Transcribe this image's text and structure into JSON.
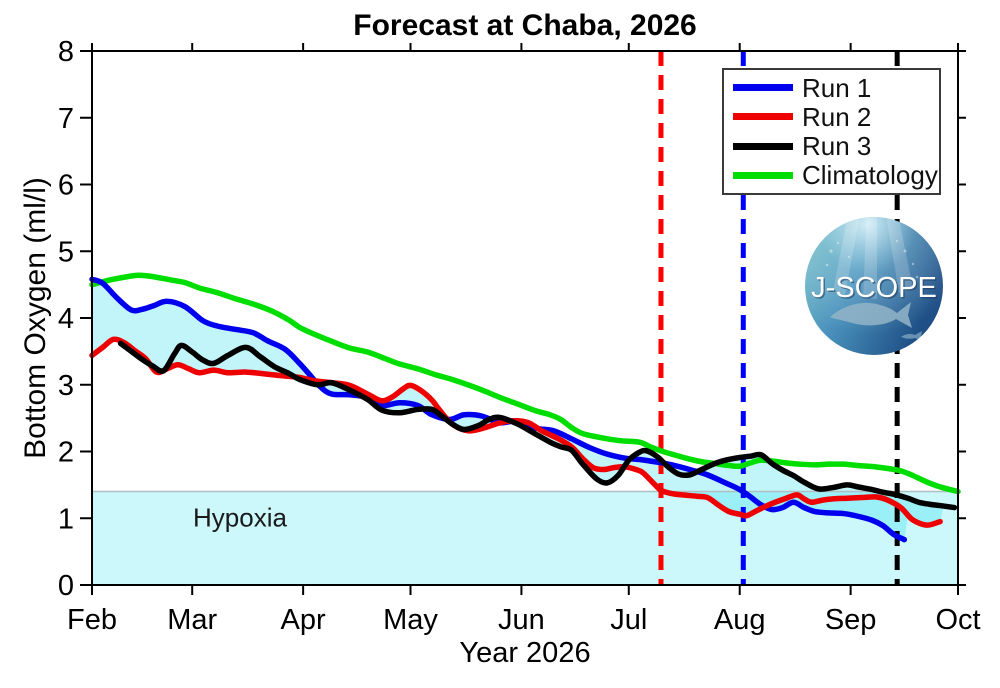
{
  "hypoxia": {
    "label": "Hypoxia",
    "threshold": 1.4,
    "fill_color": "rgba(0,213,235,0.20)"
  },
  "logo": {
    "text": "J-SCOPE"
  },
  "legend": {
    "position": "top-right"
  },
  "chart_data": {
    "type": "line",
    "title": "Forecast at Chaba, 2026",
    "xlabel": "Year 2026",
    "ylabel": "Bottom Oxygen (ml/l)",
    "ylim": [
      0,
      8
    ],
    "yticks": [
      0,
      1,
      2,
      3,
      4,
      5,
      6,
      7,
      8
    ],
    "x_unit": "days from Feb 1",
    "xlim_days": [
      0,
      242
    ],
    "xticks": [
      {
        "label": "Feb",
        "day": 0
      },
      {
        "label": "Mar",
        "day": 28
      },
      {
        "label": "Apr",
        "day": 59
      },
      {
        "label": "May",
        "day": 89
      },
      {
        "label": "Jun",
        "day": 120
      },
      {
        "label": "Jul",
        "day": 150
      },
      {
        "label": "Aug",
        "day": 181
      },
      {
        "label": "Sep",
        "day": 212
      },
      {
        "label": "Oct",
        "day": 242
      }
    ],
    "grid": false,
    "envelope": {
      "between": [
        "Run 1",
        "Run 2",
        "Run 3"
      ],
      "fill_color": "rgba(0,213,235,0.24)"
    },
    "vertical_dashed_lines": [
      {
        "color": "#ff0000",
        "day": 159
      },
      {
        "color": "#0000ff",
        "day": 182
      },
      {
        "color": "#000000",
        "day": 225
      }
    ],
    "series": [
      {
        "name": "Run 1",
        "color": "#0000ee",
        "points": [
          [
            0,
            4.58
          ],
          [
            3,
            4.52
          ],
          [
            7,
            4.3
          ],
          [
            11,
            4.12
          ],
          [
            14,
            4.13
          ],
          [
            17,
            4.18
          ],
          [
            21,
            4.25
          ],
          [
            26,
            4.17
          ],
          [
            31,
            3.96
          ],
          [
            35,
            3.88
          ],
          [
            40,
            3.83
          ],
          [
            45,
            3.78
          ],
          [
            49,
            3.66
          ],
          [
            54,
            3.53
          ],
          [
            58,
            3.32
          ],
          [
            61,
            3.14
          ],
          [
            64,
            2.96
          ],
          [
            67,
            2.86
          ],
          [
            72,
            2.85
          ],
          [
            77,
            2.81
          ],
          [
            81,
            2.69
          ],
          [
            86,
            2.73
          ],
          [
            91,
            2.69
          ],
          [
            95,
            2.55
          ],
          [
            100,
            2.48
          ],
          [
            104,
            2.55
          ],
          [
            109,
            2.53
          ],
          [
            114,
            2.43
          ],
          [
            119,
            2.46
          ],
          [
            124,
            2.35
          ],
          [
            129,
            2.31
          ],
          [
            134,
            2.19
          ],
          [
            139,
            2.06
          ],
          [
            144,
            1.96
          ],
          [
            149,
            1.9
          ],
          [
            153,
            1.88
          ],
          [
            158,
            1.84
          ],
          [
            162,
            1.8
          ],
          [
            167,
            1.73
          ],
          [
            172,
            1.65
          ],
          [
            177,
            1.53
          ],
          [
            181,
            1.43
          ],
          [
            184,
            1.32
          ],
          [
            187,
            1.2
          ],
          [
            190,
            1.13
          ],
          [
            193,
            1.16
          ],
          [
            196,
            1.24
          ],
          [
            199,
            1.16
          ],
          [
            202,
            1.1
          ],
          [
            206,
            1.08
          ],
          [
            210,
            1.07
          ],
          [
            214,
            1.03
          ],
          [
            218,
            0.97
          ],
          [
            221,
            0.89
          ],
          [
            224,
            0.76
          ],
          [
            227,
            0.68
          ]
        ]
      },
      {
        "name": "Run 2",
        "color": "#ee0000",
        "points": [
          [
            0,
            3.44
          ],
          [
            3,
            3.56
          ],
          [
            6,
            3.68
          ],
          [
            9,
            3.63
          ],
          [
            12,
            3.51
          ],
          [
            15,
            3.39
          ],
          [
            18,
            3.19
          ],
          [
            21,
            3.24
          ],
          [
            24,
            3.3
          ],
          [
            27,
            3.24
          ],
          [
            30,
            3.18
          ],
          [
            34,
            3.22
          ],
          [
            38,
            3.18
          ],
          [
            43,
            3.19
          ],
          [
            47,
            3.17
          ],
          [
            52,
            3.14
          ],
          [
            58,
            3.11
          ],
          [
            62,
            3.06
          ],
          [
            67,
            3.03
          ],
          [
            72,
            2.99
          ],
          [
            77,
            2.86
          ],
          [
            81,
            2.76
          ],
          [
            84,
            2.82
          ],
          [
            87,
            2.94
          ],
          [
            89,
            2.99
          ],
          [
            92,
            2.91
          ],
          [
            95,
            2.77
          ],
          [
            97,
            2.63
          ],
          [
            100,
            2.44
          ],
          [
            103,
            2.34
          ],
          [
            106,
            2.31
          ],
          [
            110,
            2.36
          ],
          [
            114,
            2.43
          ],
          [
            118,
            2.46
          ],
          [
            122,
            2.43
          ],
          [
            126,
            2.3
          ],
          [
            130,
            2.2
          ],
          [
            134,
            2.07
          ],
          [
            137,
            1.9
          ],
          [
            140,
            1.76
          ],
          [
            143,
            1.73
          ],
          [
            146,
            1.76
          ],
          [
            149,
            1.77
          ],
          [
            152,
            1.73
          ],
          [
            154,
            1.68
          ],
          [
            157,
            1.52
          ],
          [
            159,
            1.42
          ],
          [
            162,
            1.37
          ],
          [
            165,
            1.35
          ],
          [
            169,
            1.33
          ],
          [
            172,
            1.31
          ],
          [
            175,
            1.2
          ],
          [
            178,
            1.1
          ],
          [
            181,
            1.06
          ],
          [
            183,
            1.04
          ],
          [
            186,
            1.12
          ],
          [
            190,
            1.22
          ],
          [
            194,
            1.3
          ],
          [
            197,
            1.35
          ],
          [
            199,
            1.29
          ],
          [
            201,
            1.24
          ],
          [
            204,
            1.27
          ],
          [
            207,
            1.29
          ],
          [
            211,
            1.3
          ],
          [
            215,
            1.31
          ],
          [
            219,
            1.32
          ],
          [
            222,
            1.28
          ],
          [
            226,
            1.16
          ],
          [
            229,
            0.99
          ],
          [
            232,
            0.91
          ],
          [
            234,
            0.9
          ],
          [
            237,
            0.95
          ]
        ]
      },
      {
        "name": "Run 3",
        "color": "#000000",
        "points": [
          [
            8,
            3.62
          ],
          [
            11,
            3.5
          ],
          [
            14,
            3.38
          ],
          [
            17,
            3.28
          ],
          [
            20,
            3.21
          ],
          [
            23,
            3.46
          ],
          [
            25,
            3.59
          ],
          [
            28,
            3.49
          ],
          [
            31,
            3.37
          ],
          [
            34,
            3.32
          ],
          [
            38,
            3.44
          ],
          [
            43,
            3.56
          ],
          [
            47,
            3.42
          ],
          [
            51,
            3.27
          ],
          [
            55,
            3.17
          ],
          [
            58,
            3.08
          ],
          [
            63,
            3.0
          ],
          [
            67,
            3.03
          ],
          [
            72,
            2.92
          ],
          [
            77,
            2.78
          ],
          [
            81,
            2.62
          ],
          [
            86,
            2.58
          ],
          [
            91,
            2.63
          ],
          [
            95,
            2.63
          ],
          [
            98,
            2.52
          ],
          [
            101,
            2.4
          ],
          [
            104,
            2.33
          ],
          [
            108,
            2.39
          ],
          [
            111,
            2.48
          ],
          [
            114,
            2.51
          ],
          [
            119,
            2.41
          ],
          [
            123,
            2.29
          ],
          [
            128,
            2.14
          ],
          [
            131,
            2.07
          ],
          [
            134,
            2.02
          ],
          [
            137,
            1.82
          ],
          [
            141,
            1.59
          ],
          [
            144,
            1.53
          ],
          [
            147,
            1.64
          ],
          [
            150,
            1.87
          ],
          [
            153,
            1.99
          ],
          [
            155,
            2.01
          ],
          [
            158,
            1.92
          ],
          [
            161,
            1.77
          ],
          [
            164,
            1.66
          ],
          [
            167,
            1.65
          ],
          [
            170,
            1.72
          ],
          [
            174,
            1.82
          ],
          [
            177,
            1.87
          ],
          [
            181,
            1.91
          ],
          [
            184,
            1.93
          ],
          [
            187,
            1.95
          ],
          [
            190,
            1.82
          ],
          [
            193,
            1.72
          ],
          [
            196,
            1.64
          ],
          [
            199,
            1.54
          ],
          [
            203,
            1.44
          ],
          [
            207,
            1.46
          ],
          [
            211,
            1.5
          ],
          [
            214,
            1.47
          ],
          [
            218,
            1.43
          ],
          [
            221,
            1.39
          ],
          [
            224,
            1.36
          ],
          [
            228,
            1.3
          ],
          [
            231,
            1.24
          ],
          [
            234,
            1.21
          ],
          [
            237,
            1.19
          ],
          [
            241,
            1.16
          ]
        ]
      },
      {
        "name": "Climatology",
        "color": "#00dd00",
        "points": [
          [
            0,
            4.5
          ],
          [
            5,
            4.57
          ],
          [
            10,
            4.62
          ],
          [
            13,
            4.64
          ],
          [
            17,
            4.62
          ],
          [
            22,
            4.57
          ],
          [
            26,
            4.53
          ],
          [
            30,
            4.45
          ],
          [
            35,
            4.38
          ],
          [
            40,
            4.29
          ],
          [
            45,
            4.21
          ],
          [
            50,
            4.11
          ],
          [
            55,
            3.97
          ],
          [
            58,
            3.86
          ],
          [
            62,
            3.76
          ],
          [
            67,
            3.65
          ],
          [
            72,
            3.55
          ],
          [
            77,
            3.49
          ],
          [
            82,
            3.39
          ],
          [
            86,
            3.31
          ],
          [
            91,
            3.24
          ],
          [
            96,
            3.15
          ],
          [
            100,
            3.09
          ],
          [
            105,
            3.0
          ],
          [
            109,
            2.92
          ],
          [
            114,
            2.81
          ],
          [
            119,
            2.71
          ],
          [
            124,
            2.61
          ],
          [
            128,
            2.55
          ],
          [
            131,
            2.48
          ],
          [
            134,
            2.36
          ],
          [
            137,
            2.27
          ],
          [
            141,
            2.22
          ],
          [
            144,
            2.19
          ],
          [
            148,
            2.16
          ],
          [
            153,
            2.14
          ],
          [
            156,
            2.07
          ],
          [
            159,
            2.01
          ],
          [
            162,
            1.96
          ],
          [
            166,
            1.9
          ],
          [
            170,
            1.85
          ],
          [
            174,
            1.82
          ],
          [
            178,
            1.79
          ],
          [
            181,
            1.78
          ],
          [
            184,
            1.83
          ],
          [
            187,
            1.87
          ],
          [
            191,
            1.85
          ],
          [
            194,
            1.83
          ],
          [
            198,
            1.81
          ],
          [
            202,
            1.8
          ],
          [
            206,
            1.81
          ],
          [
            210,
            1.81
          ],
          [
            214,
            1.79
          ],
          [
            219,
            1.77
          ],
          [
            223,
            1.74
          ],
          [
            226,
            1.71
          ],
          [
            229,
            1.65
          ],
          [
            233,
            1.55
          ],
          [
            237,
            1.47
          ],
          [
            242,
            1.4
          ]
        ]
      }
    ]
  }
}
